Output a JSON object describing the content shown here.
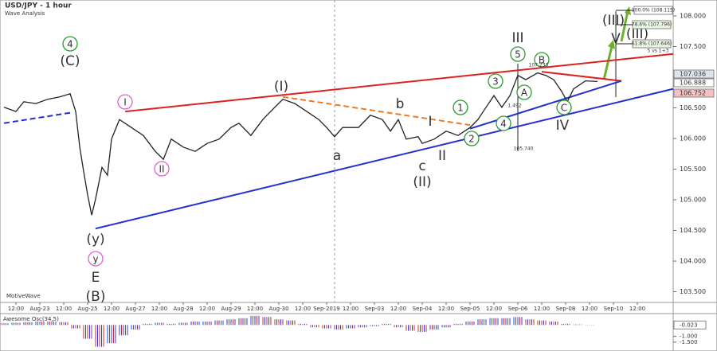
{
  "chart_data": {
    "type": "line",
    "title": "USD/JPY - 1 hour",
    "subtitle": "Wave Analysis",
    "watermark": "MotiveWave",
    "xlim": [
      -0.667,
      27.5
    ],
    "xticks": [
      {
        "value": 0,
        "label": "12:00"
      },
      {
        "value": 1,
        "label": "Aug-23"
      },
      {
        "value": 2,
        "label": "12:00"
      },
      {
        "value": 3,
        "label": "Aug-25"
      },
      {
        "value": 4,
        "label": "12:00"
      },
      {
        "value": 5,
        "label": "Aug-27"
      },
      {
        "value": 6,
        "label": "12:00"
      },
      {
        "value": 7,
        "label": "Aug-28"
      },
      {
        "value": 8,
        "label": "12:00"
      },
      {
        "value": 9,
        "label": "Aug-29"
      },
      {
        "value": 10,
        "label": "12:00"
      },
      {
        "value": 11,
        "label": "Aug-30"
      },
      {
        "value": 12,
        "label": "12:00"
      },
      {
        "value": 13,
        "label": "Sep-2019"
      },
      {
        "value": 14,
        "label": "12:00"
      },
      {
        "value": 15,
        "label": "Sep-03"
      },
      {
        "value": 16,
        "label": "12:00"
      },
      {
        "value": 17,
        "label": "Sep-04"
      },
      {
        "value": 18,
        "label": "12:00"
      },
      {
        "value": 19,
        "label": "Sep-05"
      },
      {
        "value": 20,
        "label": "12:00"
      },
      {
        "value": 21,
        "label": "Sep-06"
      },
      {
        "value": 22,
        "label": "12:00"
      },
      {
        "value": 23,
        "label": "Sep-08"
      },
      {
        "value": 24,
        "label": "12:00"
      },
      {
        "value": 25,
        "label": "Sep-10"
      },
      {
        "value": 26,
        "label": "12:00"
      }
    ],
    "ylim": [
      103.325,
      108.26
    ],
    "yticks": [
      {
        "value": 103.5,
        "label": "103.500"
      },
      {
        "value": 104,
        "label": "104.000"
      },
      {
        "value": 104.5,
        "label": "104.500"
      },
      {
        "value": 105,
        "label": "105.000"
      },
      {
        "value": 105.5,
        "label": "105.500"
      },
      {
        "value": 106,
        "label": "106.000"
      },
      {
        "value": 106.5,
        "label": "106.500"
      },
      {
        "value": 107,
        "label": "107.000"
      },
      {
        "value": 107.5,
        "label": "107.500"
      },
      {
        "value": 108,
        "label": "108.000"
      }
    ],
    "series": [
      {
        "name": "USD/JPY",
        "color": "#222222",
        "x": [
          -0.5,
          0,
          0.33,
          0.83,
          1.33,
          1.83,
          2.27,
          2.5,
          2.67,
          2.83,
          3,
          3.17,
          3.33,
          3.6,
          3.83,
          4,
          4.33,
          4.83,
          5.33,
          5.83,
          6.17,
          6.5,
          7,
          7.5,
          8,
          8.5,
          9,
          9.33,
          9.83,
          10.33,
          10.83,
          11.17,
          11.67,
          12.17,
          12.67,
          13,
          13.33,
          13.67,
          14.33,
          14.83,
          15.33,
          15.67,
          16,
          16.33,
          16.83,
          17,
          17.5,
          18,
          18.5,
          19,
          19.33,
          19.67,
          20,
          20.33,
          20.67,
          21,
          21.33,
          21.83,
          22.17,
          22.5,
          22.83,
          23.07,
          23.33,
          23.83,
          24.33
        ],
        "values": [
          106.51,
          106.44,
          106.6,
          106.57,
          106.64,
          106.68,
          106.73,
          106.44,
          105.86,
          105.47,
          105.08,
          104.75,
          105.01,
          105.53,
          105.4,
          105.99,
          106.31,
          106.18,
          106.05,
          105.79,
          105.66,
          105.99,
          105.86,
          105.79,
          105.92,
          105.99,
          106.18,
          106.25,
          106.05,
          106.31,
          106.51,
          106.64,
          106.57,
          106.44,
          106.31,
          106.18,
          106.03,
          106.18,
          106.18,
          106.38,
          106.31,
          106.12,
          106.31,
          105.99,
          106.03,
          105.92,
          105.99,
          106.12,
          106.05,
          106.18,
          106.31,
          106.51,
          106.7,
          106.51,
          106.7,
          107.03,
          106.96,
          107.07,
          107.03,
          106.96,
          106.77,
          106.6,
          106.81,
          106.94,
          106.93
        ]
      }
    ],
    "trendlines": [
      {
        "color": "#e02020",
        "x": [
          4.57,
          27.5
        ],
        "y": [
          106.44,
          107.38
        ]
      },
      {
        "color": "#1f2fd0",
        "x": [
          3.33,
          27.5
        ],
        "y": [
          104.53,
          106.81
        ]
      },
      {
        "color": "#f07a20",
        "dashed": true,
        "x": [
          11.17,
          19
        ],
        "y": [
          106.68,
          106.22
        ]
      },
      {
        "color": "#e02020",
        "x": [
          22,
          25.33
        ],
        "y": [
          107.09,
          106.94
        ]
      },
      {
        "color": "#1f2fd0",
        "x": [
          19,
          25.33
        ],
        "y": [
          106.16,
          106.94
        ]
      },
      {
        "color": "#1f2fd0",
        "dashed": true,
        "x": [
          -0.5,
          2.27
        ],
        "y": [
          106.25,
          106.42
        ]
      }
    ],
    "wave_labels": [
      {
        "text": "4",
        "color": "#2e9a2e",
        "circle": true
      },
      {
        "text": "(C)",
        "color": "#f07a20"
      },
      {
        "text": "(y)",
        "color": "#6a1b6a"
      },
      {
        "text": "y",
        "color": "#e060d0",
        "circle": true
      },
      {
        "text": "E",
        "color": "#c99be0"
      },
      {
        "text": "(B)",
        "color": "#e02020"
      },
      {
        "text": "I",
        "color": "#e060d0",
        "circle": true
      },
      {
        "text": "II",
        "color": "#e060d0",
        "circle": true
      },
      {
        "text": "(I)",
        "color": "#6a1b6a"
      },
      {
        "text": "a",
        "color": "#1f2fd0"
      },
      {
        "text": "b",
        "color": "#1f2fd0"
      },
      {
        "text": "c",
        "color": "#1f2fd0"
      },
      {
        "text": "(II)",
        "color": "#6a1b6a"
      },
      {
        "text": "I",
        "color": "#1f2fd0"
      },
      {
        "text": "II",
        "color": "#1f2fd0"
      },
      {
        "text": "1",
        "color": "#2e9a2e",
        "circle": true
      },
      {
        "text": "2",
        "color": "#2e9a2e",
        "circle": true
      },
      {
        "text": "3",
        "color": "#2e9a2e",
        "circle": true
      },
      {
        "text": "4",
        "color": "#2e9a2e",
        "circle": true
      },
      {
        "text": "5",
        "color": "#2e9a2e",
        "circle": true
      },
      {
        "text": "A",
        "color": "#2e9a2e",
        "circle": true
      },
      {
        "text": "B",
        "color": "#2e9a2e",
        "circle": true
      },
      {
        "text": "C",
        "color": "#2e9a2e",
        "circle": true
      },
      {
        "text": "IV",
        "color": "#1f2fd0"
      },
      {
        "text": "III",
        "color": "#1f2fd0"
      },
      {
        "text": "V",
        "color": "#1f2fd0"
      },
      {
        "text": "(III)",
        "color": "#6a1b6a"
      },
      {
        "text": "(III)",
        "color": "#c99be0"
      }
    ],
    "annotations": [
      "100.0% (108.115)",
      "78.6% (107.796)",
      "61.8% (107.646)",
      "5 vs 1+3",
      "107.233",
      "1.492",
      "105.740"
    ],
    "price_labels": [
      {
        "text": "107.036",
        "color": "#dde4ee"
      },
      {
        "text": "106.888",
        "color": "#ffffff"
      },
      {
        "text": "106.752",
        "color": "#f4c0c0"
      }
    ],
    "oscillator": {
      "title": "Awesome Osc(34,5)",
      "ylim": [
        -2.0,
        0.86
      ],
      "yticks": [
        {
          "value": -1,
          "label": "-1.000"
        },
        {
          "value": -1.5,
          "label": "-1.500"
        }
      ],
      "current_label": "-0.023",
      "up_color": "#2a3fe0",
      "down_color": "#c0302a",
      "x": [
        -0.5,
        0,
        0.5,
        1,
        1.5,
        2,
        2.5,
        3,
        3.5,
        4,
        4.5,
        5,
        5.5,
        6,
        6.5,
        7,
        7.5,
        8,
        8.5,
        9,
        9.5,
        10,
        10.5,
        11,
        11.5,
        12,
        12.5,
        13,
        13.5,
        14,
        14.5,
        15,
        15.5,
        16,
        16.5,
        17,
        17.5,
        18,
        18.5,
        19,
        19.5,
        20,
        20.5,
        21,
        21.5,
        22,
        22.5,
        23,
        23.5,
        24
      ],
      "values": [
        0.15,
        0.2,
        0.25,
        0.3,
        0.3,
        0.25,
        -0.3,
        -1.2,
        -1.9,
        -1.6,
        -0.9,
        -0.4,
        0.1,
        0.2,
        0.1,
        0.2,
        0.3,
        0.3,
        0.4,
        0.5,
        0.6,
        0.8,
        0.7,
        0.5,
        0.4,
        0.1,
        -0.2,
        -0.3,
        -0.4,
        -0.3,
        -0.2,
        -0.1,
        0.1,
        -0.2,
        -0.5,
        -0.6,
        -0.4,
        -0.2,
        0.1,
        0.3,
        0.5,
        0.6,
        0.6,
        0.7,
        0.5,
        0.4,
        0.3,
        0.1,
        0.05,
        -0.02
      ]
    }
  }
}
